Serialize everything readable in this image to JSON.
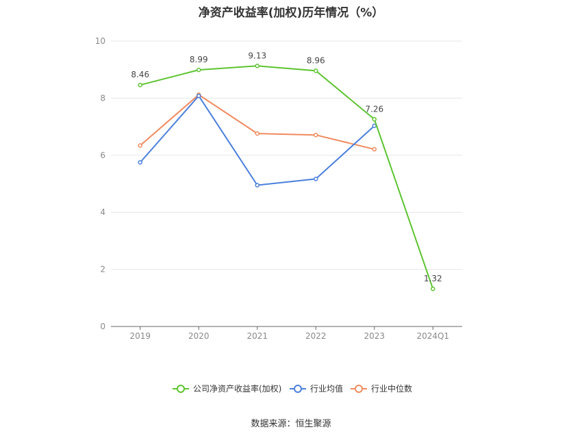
{
  "title": "净资产收益率(加权)历年情况（%）",
  "source": "数据来源：恒生聚源",
  "chart_data": {
    "type": "line",
    "title": "净资产收益率(加权)历年情况（%）",
    "categories": [
      "2019",
      "2020",
      "2021",
      "2022",
      "2023",
      "2024Q1"
    ],
    "ylim": [
      0,
      10
    ],
    "yticks": [
      0,
      2,
      4,
      6,
      8,
      10
    ],
    "grid": true,
    "legend_position": "bottom",
    "series": [
      {
        "name": "公司净资产收益率(加权)",
        "color": "#5bc42e",
        "values": [
          8.46,
          8.99,
          9.13,
          8.96,
          7.26,
          1.32
        ],
        "labels": [
          "8.46",
          "8.99",
          "9.13",
          "8.96",
          "7.26",
          "1.32"
        ]
      },
      {
        "name": "行业均值",
        "color": "#4a7fdc",
        "values": [
          5.75,
          8.08,
          4.95,
          5.17,
          7.03,
          null
        ]
      },
      {
        "name": "行业中位数",
        "color": "#f08a5d",
        "values": [
          6.34,
          8.12,
          6.76,
          6.71,
          6.21,
          null
        ]
      }
    ]
  }
}
